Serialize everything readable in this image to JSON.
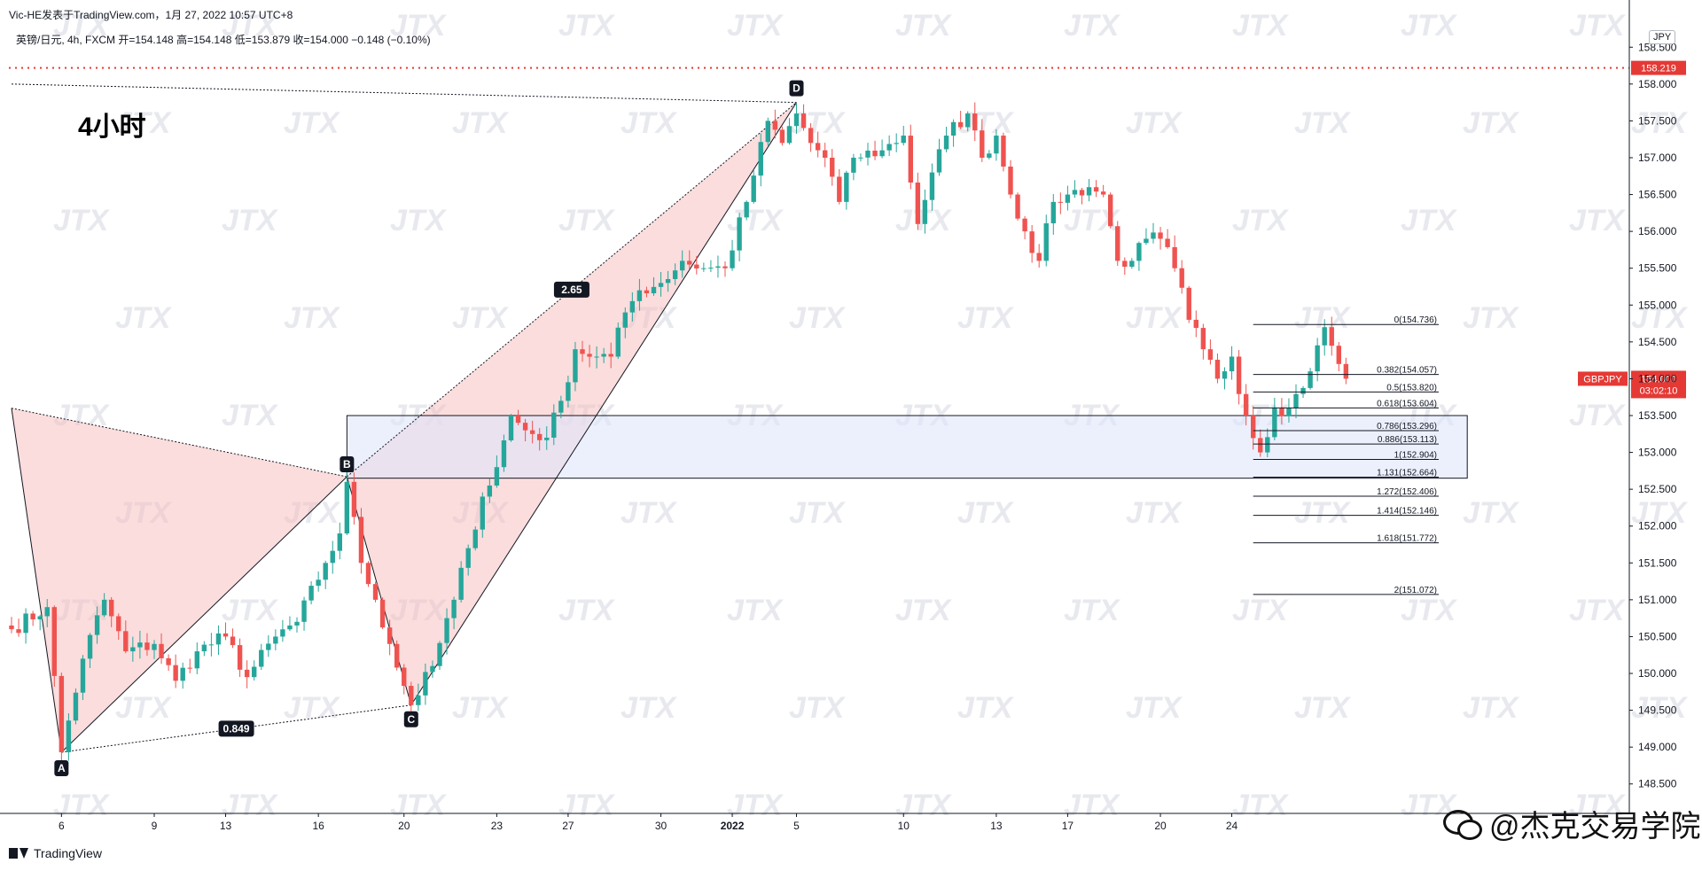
{
  "header": {
    "published": "Vic-HE发表于TradingView.com，1月 27, 2022 10:57 UTC+8",
    "ohlc": "英镑/日元, 4h, FXCM  开=154.148  高=154.148  低=153.879  收=154.000  −0.148 (−0.10%)"
  },
  "timeframe_label": "4小时",
  "currency": "JPY",
  "brand": "TradingView",
  "footer_brand": "@杰克交易学院",
  "watermark": "JTX",
  "colors": {
    "up": "#26a69a",
    "down": "#ef5350",
    "harmonic_fill": "#f8bbbb",
    "zone_fill": "#dfe6fb",
    "red_line": "#e53935"
  },
  "chart_data": {
    "type": "candlestick",
    "symbol": "GBPJPY",
    "timeframe": "4h",
    "ylim": [
      148.1,
      158.9
    ],
    "y_ticks": [
      "148.500",
      "149.000",
      "149.500",
      "150.000",
      "150.500",
      "151.000",
      "151.500",
      "152.000",
      "152.500",
      "153.000",
      "153.500",
      "154.000",
      "154.500",
      "155.000",
      "155.500",
      "156.000",
      "156.500",
      "157.000",
      "157.500",
      "158.000",
      "158.500"
    ],
    "x_ticks": [
      {
        "label": "6",
        "bar": 7
      },
      {
        "label": "9",
        "bar": 20
      },
      {
        "label": "13",
        "bar": 30
      },
      {
        "label": "16",
        "bar": 43
      },
      {
        "label": "20",
        "bar": 55
      },
      {
        "label": "23",
        "bar": 68
      },
      {
        "label": "27",
        "bar": 78
      },
      {
        "label": "30",
        "bar": 91
      },
      {
        "label": "2022",
        "bar": 101
      },
      {
        "label": "5",
        "bar": 110
      },
      {
        "label": "10",
        "bar": 125
      },
      {
        "label": "13",
        "bar": 138
      },
      {
        "label": "17",
        "bar": 148
      },
      {
        "label": "20",
        "bar": 161
      },
      {
        "label": "24",
        "bar": 171
      }
    ],
    "key_level": {
      "value": 158.219,
      "label": "158.219"
    },
    "current_price": {
      "value": 154.0,
      "label": "154.000",
      "countdown": "03:02:10",
      "symbol_tag": "GBPJPY"
    },
    "zone": {
      "from_bar": 47,
      "to_bar": 204,
      "top": 153.5,
      "bottom": 152.65
    },
    "harmonic_points": [
      {
        "label": "A",
        "bar": 7,
        "price": 148.93
      },
      {
        "label": "B",
        "bar": 47,
        "price": 152.67
      },
      {
        "label": "C",
        "bar": 56,
        "price": 149.57
      },
      {
        "label": "D",
        "bar": 110,
        "price": 157.75
      }
    ],
    "harmonic_x_start": {
      "bar": 0,
      "price": 153.6
    },
    "harmonic_d_extension_start": {
      "bar": 0,
      "price": 158.0
    },
    "ratios": [
      {
        "label": "0.849",
        "from": "A",
        "to": "C"
      },
      {
        "label": "2.65",
        "from": "B",
        "to": "D"
      }
    ],
    "fib": {
      "from_bar": 174,
      "to_bar": 200,
      "levels": [
        {
          "label": "0(154.736)",
          "value": 154.736
        },
        {
          "label": "0.382(154.057)",
          "value": 154.057
        },
        {
          "label": "0.5(153.820)",
          "value": 153.82
        },
        {
          "label": "0.618(153.604)",
          "value": 153.604
        },
        {
          "label": "0.786(153.296)",
          "value": 153.296
        },
        {
          "label": "0.886(153.113)",
          "value": 153.113
        },
        {
          "label": "1(152.904)",
          "value": 152.904
        },
        {
          "label": "1.131(152.664)",
          "value": 152.664
        },
        {
          "label": "1.272(152.406)",
          "value": 152.406
        },
        {
          "label": "1.414(152.146)",
          "value": 152.146
        },
        {
          "label": "1.618(151.772)",
          "value": 151.772
        },
        {
          "label": "2(151.072)",
          "value": 151.072
        }
      ]
    },
    "anchors": [
      [
        0,
        150.6
      ],
      [
        5,
        150.9
      ],
      [
        7,
        148.93
      ],
      [
        10,
        150.2
      ],
      [
        13,
        151.0
      ],
      [
        16,
        150.3
      ],
      [
        20,
        150.4
      ],
      [
        23,
        149.9
      ],
      [
        26,
        150.3
      ],
      [
        30,
        150.5
      ],
      [
        33,
        149.95
      ],
      [
        37,
        150.5
      ],
      [
        40,
        150.7
      ],
      [
        44,
        151.5
      ],
      [
        46,
        151.9
      ],
      [
        47,
        152.6
      ],
      [
        49,
        151.5
      ],
      [
        51,
        151.0
      ],
      [
        53,
        150.4
      ],
      [
        56,
        149.57
      ],
      [
        59,
        150.1
      ],
      [
        62,
        151.0
      ],
      [
        64,
        151.7
      ],
      [
        66,
        152.4
      ],
      [
        68,
        152.8
      ],
      [
        70,
        153.5
      ],
      [
        72,
        153.3
      ],
      [
        75,
        153.2
      ],
      [
        77,
        153.7
      ],
      [
        79,
        154.4
      ],
      [
        82,
        154.3
      ],
      [
        84,
        154.3
      ],
      [
        86,
        154.9
      ],
      [
        88,
        155.2
      ],
      [
        91,
        155.3
      ],
      [
        94,
        155.6
      ],
      [
        97,
        155.5
      ],
      [
        100,
        155.5
      ],
      [
        103,
        156.4
      ],
      [
        106,
        157.5
      ],
      [
        108,
        157.2
      ],
      [
        110,
        157.6
      ],
      [
        112,
        157.2
      ],
      [
        114,
        157.0
      ],
      [
        116,
        156.4
      ],
      [
        118,
        157.0
      ],
      [
        122,
        157.1
      ],
      [
        125,
        157.3
      ],
      [
        127,
        156.1
      ],
      [
        129,
        156.8
      ],
      [
        131,
        157.3
      ],
      [
        134,
        157.6
      ],
      [
        136,
        157.0
      ],
      [
        138,
        157.3
      ],
      [
        140,
        156.5
      ],
      [
        142,
        156.0
      ],
      [
        144,
        155.6
      ],
      [
        146,
        156.4
      ],
      [
        148,
        156.5
      ],
      [
        151,
        156.6
      ],
      [
        153,
        156.5
      ],
      [
        155,
        155.6
      ],
      [
        157,
        155.6
      ],
      [
        159,
        155.9
      ],
      [
        161,
        155.9
      ],
      [
        163,
        155.5
      ],
      [
        165,
        154.8
      ],
      [
        167,
        154.4
      ],
      [
        169,
        154.0
      ],
      [
        171,
        154.3
      ],
      [
        173,
        153.5
      ],
      [
        175,
        153.0
      ],
      [
        177,
        153.6
      ],
      [
        179,
        153.6
      ],
      [
        182,
        154.1
      ],
      [
        184,
        154.7
      ],
      [
        186,
        154.2
      ],
      [
        187,
        154.0
      ]
    ]
  }
}
